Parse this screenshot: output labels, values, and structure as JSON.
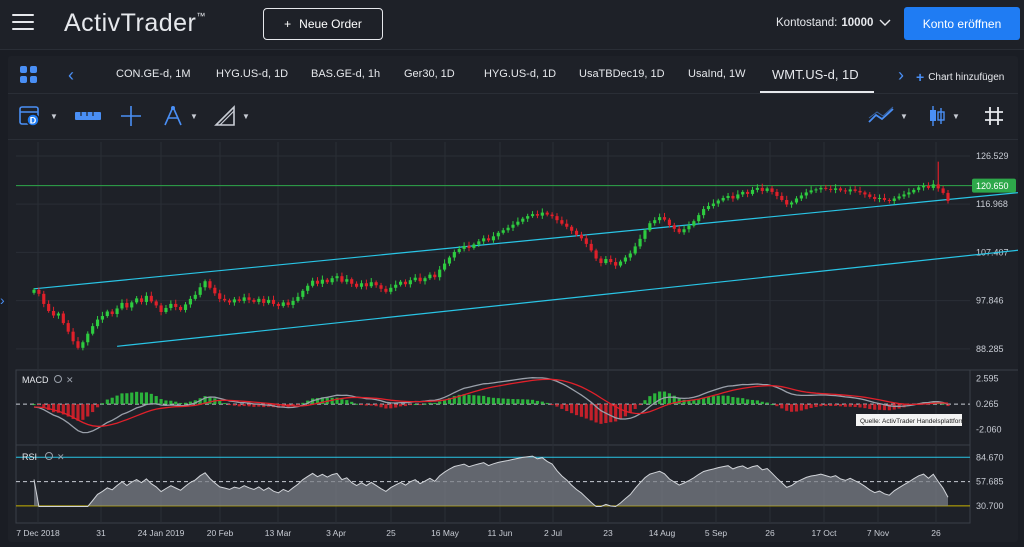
{
  "header": {
    "logo": "ActivTrader",
    "logo_tm": "™",
    "new_order_plus": "+",
    "new_order_label": "Neue Order",
    "balance_label": "Kontostand:",
    "balance_value": "10000",
    "open_account_label": "Konto eröffnen"
  },
  "tabs": [
    {
      "label": "CON.GE-d, 1M"
    },
    {
      "label": "HYG.US-d, 1D"
    },
    {
      "label": "BAS.GE-d, 1h"
    },
    {
      "label": "Ger30, 1D"
    },
    {
      "label": "HYG.US-d, 1D"
    },
    {
      "label": "UsaTBDec19, 1D"
    },
    {
      "label": "UsaInd, 1W"
    },
    {
      "label": "WMT.US-d, 1D"
    }
  ],
  "add_chart_label": "Chart hinzufügen",
  "colors": {
    "accent": "#1f7cf3",
    "bull": "#2ecc40",
    "bear": "#e0202a",
    "channel": "#29c5e6",
    "hline": "#2ea84a",
    "price_tag": "#2ea84a"
  },
  "chart_data": [
    {
      "type": "candlestick",
      "instrument": "WMT.US-d, 1D",
      "y_ticks": [
        "126.529",
        "116.968",
        "107.407",
        "97.846",
        "88.285"
      ],
      "ylim": [
        84.5,
        128.5
      ],
      "current_price": "120.650",
      "horizontal_line": 120.65,
      "channel_upper": [
        [
          0,
          100.2
        ],
        [
          260,
          124.8
        ]
      ],
      "channel_lower": [
        [
          17,
          88.8
        ],
        [
          260,
          113.9
        ]
      ],
      "closes": [
        100.0,
        99.2,
        97.2,
        95.8,
        94.9,
        95.3,
        93.4,
        91.7,
        89.8,
        88.5,
        89.6,
        91.3,
        92.8,
        94.1,
        94.8,
        95.7,
        95.2,
        96.3,
        97.4,
        96.5,
        97.5,
        98.3,
        97.6,
        98.8,
        97.7,
        96.9,
        95.6,
        96.4,
        97.2,
        96.6,
        96.0,
        97.1,
        98.2,
        99.0,
        100.5,
        101.7,
        100.4,
        99.3,
        98.2,
        97.9,
        97.5,
        98.1,
        97.8,
        98.5,
        98.0,
        97.6,
        98.2,
        97.4,
        98.0,
        97.2,
        96.8,
        97.5,
        97.0,
        97.8,
        98.6,
        99.8,
        100.8,
        101.8,
        101.2,
        102.0,
        101.5,
        102.3,
        102.7,
        101.6,
        102.1,
        101.2,
        100.6,
        101.3,
        100.7,
        101.5,
        100.9,
        100.2,
        99.6,
        100.4,
        101.0,
        101.6,
        101.1,
        101.9,
        102.4,
        101.7,
        102.3,
        103.0,
        102.5,
        104.0,
        105.2,
        106.4,
        107.5,
        108.1,
        108.7,
        108.3,
        109.0,
        109.6,
        110.2,
        109.8,
        110.6,
        111.3,
        111.8,
        112.3,
        112.9,
        113.5,
        114.1,
        114.6,
        115.0,
        114.7,
        115.3,
        114.9,
        114.6,
        113.8,
        113.1,
        112.5,
        111.7,
        110.9,
        110.2,
        109.1,
        107.8,
        106.2,
        105.3,
        106.1,
        105.5,
        104.8,
        105.6,
        106.4,
        107.2,
        108.6,
        110.1,
        111.8,
        113.2,
        113.8,
        114.4,
        113.9,
        112.8,
        112.1,
        111.4,
        112.0,
        112.7,
        113.6,
        114.8,
        116.0,
        116.6,
        117.1,
        117.7,
        118.2,
        118.6,
        118.1,
        118.9,
        119.4,
        119.0,
        119.8,
        120.2,
        119.6,
        120.1,
        119.4,
        118.6,
        117.8,
        116.9,
        117.3,
        118.1,
        118.7,
        119.3,
        119.7,
        119.9,
        120.2,
        120.0,
        119.8,
        120.1,
        119.7,
        119.5,
        119.9,
        119.6,
        119.3,
        118.9,
        118.4,
        118.0,
        118.2,
        117.8,
        117.6,
        118.1,
        118.5,
        118.9,
        119.3,
        119.8,
        120.3,
        120.6,
        120.2,
        120.9,
        120.1,
        119.2,
        117.6
      ],
      "macd_ticks": [
        "2.595",
        "0.265",
        "-2.060"
      ],
      "macd_label": "MACD",
      "rsi_ticks": [
        "84.670",
        "57.685",
        "30.700"
      ],
      "rsi_label": "RSI",
      "source_note": "Quelle: ActivTrader Handelsplattform",
      "x_ticks": [
        "7 Dec 2018",
        "31",
        "24 Jan 2019",
        "20 Feb",
        "13 Mar",
        "3 Apr",
        "25",
        "16 May",
        "11 Jun",
        "2 Jul",
        "23",
        "14 Aug",
        "5 Sep",
        "26",
        "17 Oct",
        "7 Nov",
        "26"
      ]
    }
  ]
}
